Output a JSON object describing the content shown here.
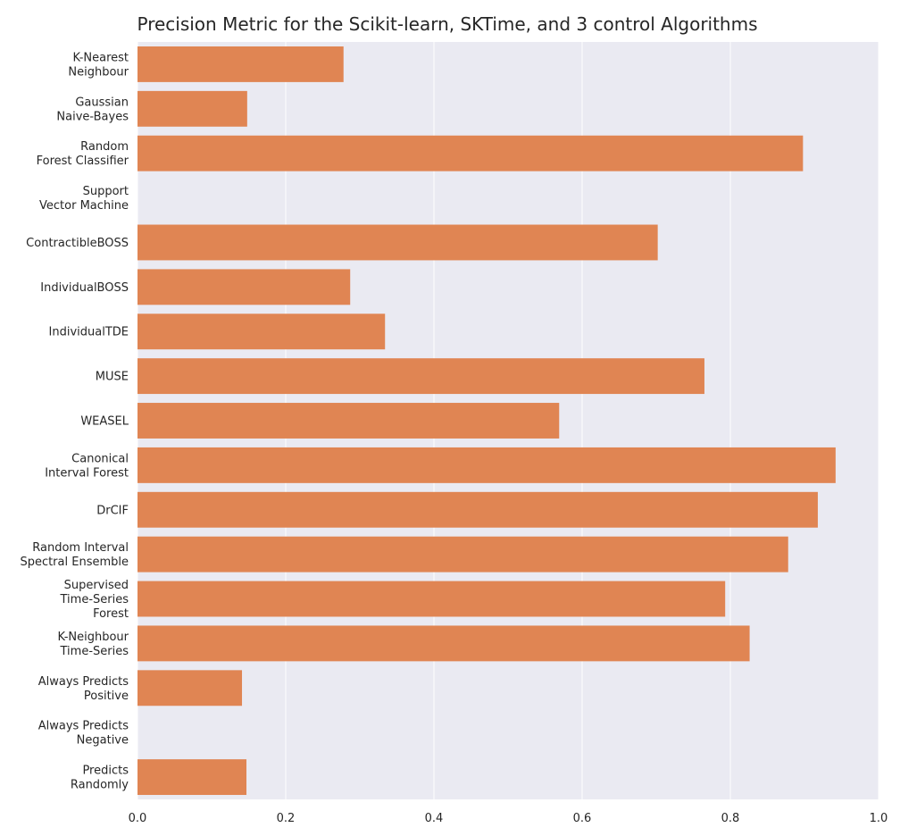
{
  "chart_data": {
    "type": "bar",
    "orientation": "horizontal",
    "title": "Precision Metric for the Scikit-learn, SKTime, and 3 control Algorithms",
    "xlabel": "",
    "ylabel": "",
    "xlim": [
      0.0,
      1.0
    ],
    "xticks": [
      "0.0",
      "0.2",
      "0.4",
      "0.6",
      "0.8",
      "1.0"
    ],
    "grid": true,
    "categories": [
      [
        "K-Nearest",
        "Neighbour"
      ],
      [
        "Gaussian",
        "Naive-Bayes"
      ],
      [
        "Random",
        "Forest Classifier"
      ],
      [
        "Support",
        "Vector Machine"
      ],
      [
        "ContractibleBOSS"
      ],
      [
        "IndividualBOSS"
      ],
      [
        "IndividualTDE"
      ],
      [
        "MUSE"
      ],
      [
        "WEASEL"
      ],
      [
        "Canonical",
        "Interval Forest"
      ],
      [
        "DrCIF"
      ],
      [
        "Random Interval",
        "Spectral Ensemble"
      ],
      [
        "Supervised",
        "Time-Series",
        "Forest"
      ],
      [
        "K-Neighbour",
        "Time-Series"
      ],
      [
        "Always Predicts",
        "Positive"
      ],
      [
        "Always Predicts",
        "Negative"
      ],
      [
        "Predicts",
        "Randomly"
      ]
    ],
    "values": [
      0.278,
      0.148,
      0.898,
      0.0,
      0.702,
      0.287,
      0.334,
      0.765,
      0.569,
      0.942,
      0.918,
      0.878,
      0.793,
      0.826,
      0.141,
      0.0,
      0.147
    ],
    "colors": {
      "bar": "#e08553",
      "background": "#eaeaf2",
      "grid": "#ffffff",
      "text": "#262626"
    }
  }
}
